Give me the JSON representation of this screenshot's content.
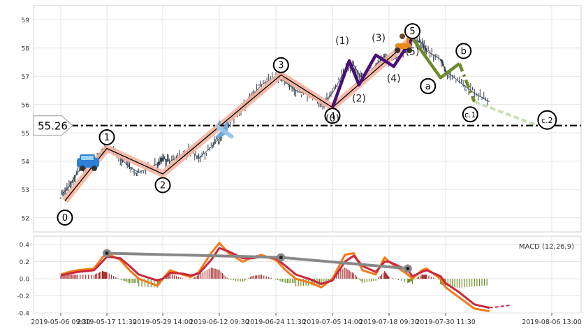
{
  "chart_data": [
    {
      "type": "line",
      "panel": "price",
      "title": "",
      "xlabel": "",
      "ylabel": "",
      "ylim": [
        51.5,
        59.5
      ],
      "yticks": [
        52,
        53,
        54,
        55,
        56,
        57,
        58,
        59
      ],
      "grid": true,
      "price_series_color": "#2f3b4c",
      "price_series": {
        "x": [
          "2019-05-06 09:30",
          "2019-05-08 09:30",
          "2019-05-10 09:30",
          "2019-05-14 09:30",
          "2019-05-16 09:30",
          "2019-05-17 11:30",
          "2019-05-20 09:30",
          "2019-05-22 09:30",
          "2019-05-24 09:30",
          "2019-05-28 09:30",
          "2019-05-29 14:00",
          "2019-05-31 09:30",
          "2019-06-03 09:30",
          "2019-06-05 09:30",
          "2019-06-07 09:30",
          "2019-06-10 09:30",
          "2019-06-12 09:30",
          "2019-06-14 09:30",
          "2019-06-17 09:30",
          "2019-06-19 09:30",
          "2019-06-21 09:30",
          "2019-06-24 11:30",
          "2019-06-26 09:30",
          "2019-06-28 09:30",
          "2019-07-01 09:30",
          "2019-07-03 09:30",
          "2019-07-05 14:00",
          "2019-07-08 09:30",
          "2019-07-10 09:30",
          "2019-07-12 09:30",
          "2019-07-15 09:30",
          "2019-07-17 09:30",
          "2019-07-18 09:30",
          "2019-07-22 09:30",
          "2019-07-23 09:30",
          "2019-07-25 09:30",
          "2019-07-26 09:30",
          "2019-07-29 09:30",
          "2019-07-30 11:30",
          "2019-07-31 09:30",
          "2019-08-01 09:30",
          "2019-08-02 09:30"
        ],
        "y": [
          52.8,
          53.1,
          53.6,
          54.0,
          54.3,
          54.5,
          54.1,
          53.8,
          53.6,
          53.9,
          54.1,
          54.0,
          54.2,
          54.4,
          54.1,
          54.5,
          54.8,
          55.4,
          55.9,
          56.3,
          56.7,
          57.0,
          56.8,
          56.5,
          56.3,
          56.0,
          56.4,
          57.2,
          57.4,
          56.9,
          57.4,
          57.7,
          57.5,
          57.9,
          58.3,
          58.2,
          57.9,
          57.6,
          57.2,
          56.8,
          56.4,
          56.1
        ]
      },
      "wave_labels": [
        {
          "label": "0",
          "x": "2019-05-07 09:30",
          "y": 52.6
        },
        {
          "label": "1",
          "x": "2019-05-17 11:30",
          "y": 54.45
        },
        {
          "label": "2",
          "x": "2019-05-29 14:00",
          "y": 53.55
        },
        {
          "label": "3",
          "x": "2019-06-25 11:30",
          "y": 57.05
        },
        {
          "label": "4",
          "x": "2019-07-05 14:00",
          "y": 55.9
        },
        {
          "label": "5",
          "x": "2019-07-23 09:30",
          "y": 58.35
        },
        {
          "label": "(0)",
          "x": "2019-07-05 14:00",
          "y": 55.9
        },
        {
          "label": "(1)",
          "x": "2019-07-09 09:30",
          "y": 57.55
        },
        {
          "label": "(2)",
          "x": "2019-07-11 14:00",
          "y": 56.7
        },
        {
          "label": "(3)",
          "x": "2019-07-15 09:30",
          "y": 57.75
        },
        {
          "label": "(4)",
          "x": "2019-07-19 09:30",
          "y": 57.35
        },
        {
          "label": "(5)",
          "x": "2019-07-23 09:30",
          "y": 58.35
        },
        {
          "label": "a",
          "x": "2019-07-29 09:30",
          "y": 56.95
        },
        {
          "label": "b",
          "x": "2019-07-31 09:30",
          "y": 57.45
        },
        {
          "label": "c.1",
          "x": "2019-08-01 09:30",
          "y": 56.1
        },
        {
          "label": "c.2",
          "x": "2019-08-05 14:00",
          "y": 55.26
        }
      ],
      "reference_line": {
        "label": "55.26",
        "value": 55.26
      },
      "wave_colors": {
        "impulse": "#000000",
        "impulse_band": "#f5b5a0",
        "subwave": "#4b0f78",
        "correction": "#6b8a2a",
        "projection": "#c9dfb2"
      }
    },
    {
      "type": "line",
      "panel": "macd",
      "title": "",
      "legend": "MACD (12,26,9)",
      "legend_position": "top-right",
      "ylim": [
        -0.4,
        0.5
      ],
      "yticks": [
        -0.4,
        -0.2,
        0.0,
        0.2,
        0.4
      ],
      "grid": true,
      "x_tick_labels": [
        "2019-05-06 09:30",
        "2019-05-17 11:30",
        "2019-05-29 14:00",
        "2019-06-12 09:30",
        "2019-06-24 11:30",
        "2019-07-05 14:00",
        "2019-07-18 09:30",
        "2019-07-30 11:30",
        "2019-08-06 13:00"
      ],
      "series": [
        {
          "color": "#f27a1a",
          "values": [
            0.05,
            0.08,
            0.1,
            0.12,
            0.25,
            0.3,
            0.22,
            0.1,
            0.0,
            -0.08,
            0.0,
            0.1,
            0.05,
            0.02,
            0.08,
            0.3,
            0.42,
            0.3,
            0.2,
            0.25,
            0.28,
            0.22,
            0.1,
            0.0,
            -0.05,
            -0.1,
            0.0,
            0.28,
            0.3,
            0.1,
            0.05,
            0.25,
            0.2,
            0.05,
            0.0,
            0.1,
            0.12,
            0.0,
            -0.1,
            -0.22,
            -0.35,
            -0.38
          ]
        },
        {
          "color": "#c8283b",
          "values": [
            0.04,
            0.06,
            0.08,
            0.1,
            0.2,
            0.26,
            0.24,
            0.15,
            0.05,
            -0.02,
            0.0,
            0.07,
            0.06,
            0.04,
            0.06,
            0.22,
            0.36,
            0.32,
            0.24,
            0.24,
            0.26,
            0.24,
            0.15,
            0.05,
            -0.01,
            -0.06,
            -0.02,
            0.2,
            0.27,
            0.15,
            0.08,
            0.2,
            0.2,
            0.1,
            0.03,
            0.08,
            0.1,
            0.03,
            -0.05,
            -0.16,
            -0.3,
            -0.34
          ]
        }
      ],
      "trend_line": {
        "color": "#888888",
        "points": [
          {
            "x": "2019-05-17 11:30",
            "y": 0.3
          },
          {
            "x": "2019-06-25 11:30",
            "y": 0.25
          },
          {
            "x": "2019-07-22 09:30",
            "y": 0.12
          }
        ]
      },
      "histogram_colors": {
        "positive": "#a52a2a",
        "negative": "#6b8e23"
      }
    }
  ]
}
